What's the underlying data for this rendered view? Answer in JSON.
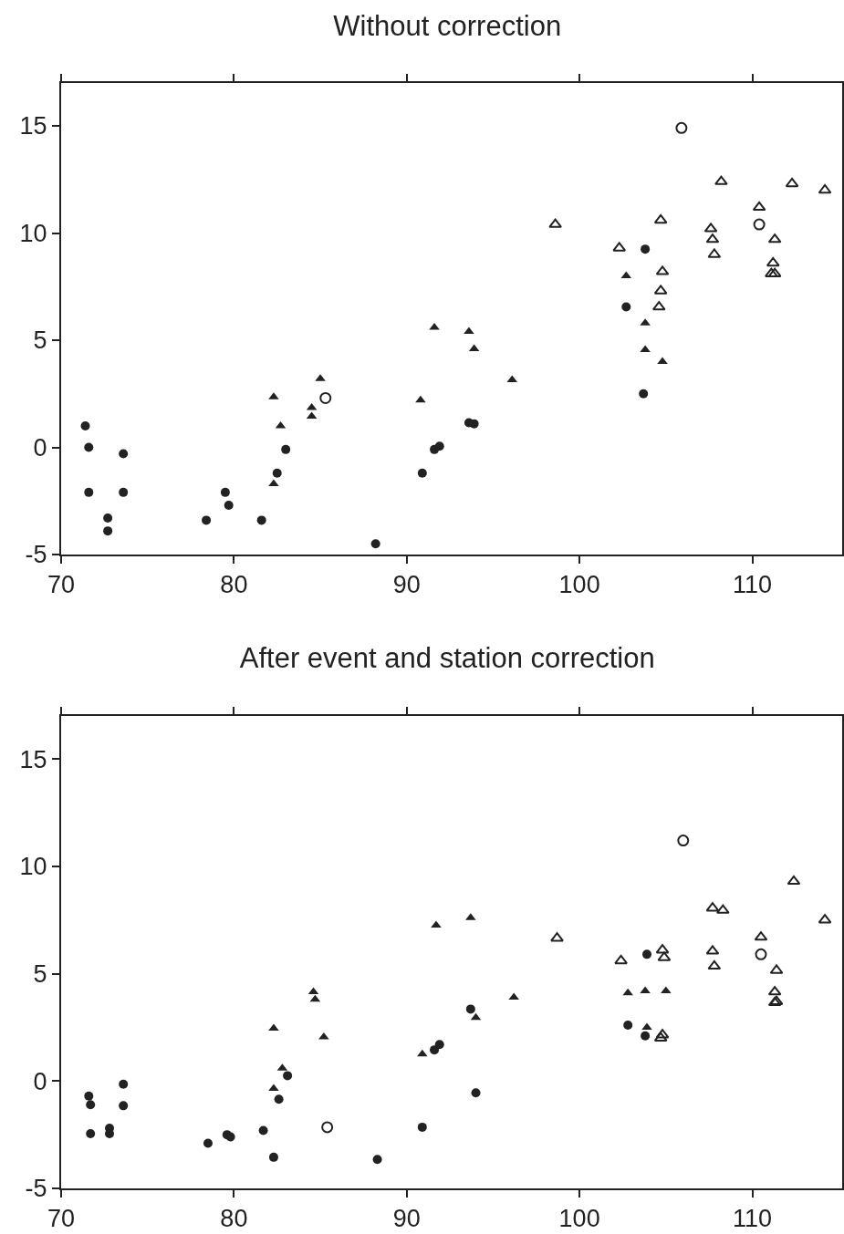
{
  "chart_data": [
    {
      "type": "scatter",
      "title": "Without correction",
      "xlim": [
        70,
        115.2
      ],
      "xticks": [
        70,
        80,
        90,
        100,
        110
      ],
      "ylim": [
        -5,
        17
      ],
      "yticks": [
        -5,
        0,
        5,
        10,
        15
      ],
      "series": [
        {
          "marker": "circle",
          "color": "#222222",
          "x": [
            71.4,
            71.6,
            71.6,
            72.7,
            72.7,
            73.6,
            73.6,
            78.4,
            79.5,
            79.7,
            81.6,
            82.5,
            83.0,
            88.2,
            90.9,
            91.6,
            91.9,
            93.6,
            93.9,
            102.7,
            103.8,
            103.7
          ],
          "values": [
            1.0,
            0,
            -2.1,
            -3.3,
            -3.9,
            -0.3,
            -2.1,
            -3.4,
            -2.1,
            -2.7,
            -3.4,
            -1.2,
            -0.1,
            -4.5,
            -1.2,
            -0.1,
            0.05,
            1.15,
            1.1,
            6.55,
            9.25,
            2.5
          ]
        },
        {
          "marker": "circle-open",
          "color": "#222222",
          "x": [
            85.3,
            105.9,
            110.4
          ],
          "values": [
            2.3,
            14.9,
            10.4
          ]
        },
        {
          "marker": "triangle",
          "color": "#222222",
          "x": [
            82.3,
            82.3,
            82.7,
            84.5,
            84.5,
            85.0,
            90.8,
            91.6,
            93.6,
            93.9,
            96.1,
            102.7,
            103.8,
            103.8,
            104.8
          ],
          "values": [
            2.35,
            -1.7,
            1.0,
            1.85,
            1.45,
            3.2,
            2.2,
            5.6,
            5.4,
            4.6,
            3.15,
            8.0,
            5.8,
            4.55,
            4.0
          ]
        },
        {
          "marker": "triangle-open",
          "color": "#222222",
          "x": [
            98.6,
            102.3,
            104.7,
            104.8,
            104.7,
            104.6,
            107.6,
            107.7,
            107.8,
            108.2,
            110.4,
            111.3,
            111.2,
            111.1,
            111.3,
            112.3,
            114.2
          ],
          "values": [
            10.4,
            9.3,
            10.6,
            8.2,
            7.3,
            6.55,
            10.2,
            9.7,
            9.0,
            12.4,
            11.2,
            9.7,
            8.6,
            8.1,
            8.1,
            12.3,
            12.0
          ]
        }
      ]
    },
    {
      "type": "scatter",
      "title": "After event and station correction",
      "xlim": [
        70,
        115.2
      ],
      "xticks": [
        70,
        80,
        90,
        100,
        110
      ],
      "ylim": [
        -5,
        17
      ],
      "yticks": [
        -5,
        0,
        5,
        10,
        15
      ],
      "series": [
        {
          "marker": "circle",
          "color": "#222222",
          "x": [
            71.6,
            71.7,
            71.7,
            72.8,
            72.8,
            73.6,
            73.6,
            78.5,
            79.6,
            79.8,
            81.7,
            82.3,
            82.6,
            83.1,
            88.3,
            90.9,
            91.6,
            91.9,
            93.7,
            94.0,
            102.8,
            103.9,
            103.8
          ],
          "values": [
            -0.7,
            -1.1,
            -2.45,
            -2.2,
            -2.45,
            -0.15,
            -1.15,
            -2.9,
            -2.5,
            -2.6,
            -2.3,
            -3.55,
            -0.85,
            0.25,
            -3.65,
            -2.15,
            1.45,
            1.7,
            3.35,
            -0.55,
            2.6,
            5.9,
            2.1
          ]
        },
        {
          "marker": "circle-open",
          "color": "#222222",
          "x": [
            85.4,
            106.0,
            110.5
          ],
          "values": [
            -2.15,
            11.2,
            5.9
          ]
        },
        {
          "marker": "triangle",
          "color": "#222222",
          "x": [
            82.3,
            82.3,
            82.8,
            84.6,
            84.7,
            85.2,
            90.9,
            91.7,
            93.7,
            94.0,
            96.2,
            102.8,
            103.8,
            105.0,
            103.9
          ],
          "values": [
            2.45,
            -0.35,
            0.6,
            4.15,
            3.8,
            2.05,
            1.25,
            7.25,
            7.6,
            2.95,
            3.9,
            4.1,
            4.2,
            4.2,
            2.5
          ]
        },
        {
          "marker": "triangle-open",
          "color": "#222222",
          "x": [
            98.7,
            102.4,
            104.8,
            104.9,
            104.8,
            104.7,
            107.7,
            108.3,
            107.7,
            107.8,
            110.5,
            111.4,
            111.3,
            111.3,
            111.4,
            112.4,
            114.2
          ],
          "values": [
            6.65,
            5.6,
            6.1,
            5.75,
            2.15,
            2.0,
            8.05,
            7.95,
            6.05,
            5.35,
            6.7,
            5.15,
            4.15,
            3.65,
            3.7,
            9.3,
            7.5
          ]
        }
      ]
    }
  ]
}
